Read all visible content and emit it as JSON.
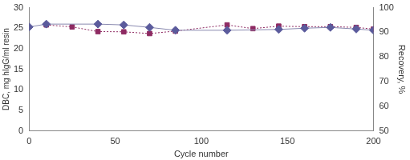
{
  "chart_data": {
    "type": "scatter",
    "x_label": "Cycle number",
    "y_label": "DBC, mg hIgG/ml resin",
    "y2_label": "Recovery, %",
    "xlim": [
      0,
      200
    ],
    "xticks": [
      0,
      50,
      100,
      150,
      200
    ],
    "ylim": [
      0,
      30
    ],
    "yticks": [
      0,
      5,
      10,
      15,
      20,
      25,
      30
    ],
    "y2lim": [
      50,
      100
    ],
    "y2ticks": [
      50,
      60,
      70,
      80,
      90,
      100
    ],
    "grid": false,
    "series": [
      {
        "color": "#5b5b9c",
        "marker": "diamond",
        "line_style": "solid",
        "axis": "y",
        "x": [
          0,
          10,
          40,
          55,
          70,
          85,
          115,
          145,
          160,
          175,
          190,
          200
        ],
        "values": [
          25.3,
          26,
          26,
          25.8,
          25.2,
          24.5,
          24.5,
          24.7,
          25,
          25.2,
          24.8,
          24.5
        ]
      },
      {
        "color": "#8e2a62",
        "marker": "square",
        "line_style": "dotted",
        "axis": "y2",
        "x": [
          10,
          25,
          40,
          55,
          70,
          85,
          115,
          130,
          145,
          160,
          175,
          190,
          200
        ],
        "values": [
          93,
          92.2,
          90.3,
          90.2,
          89.5,
          90.5,
          93,
          91.5,
          92.5,
          92.3,
          92.3,
          92,
          91.3
        ]
      }
    ]
  }
}
